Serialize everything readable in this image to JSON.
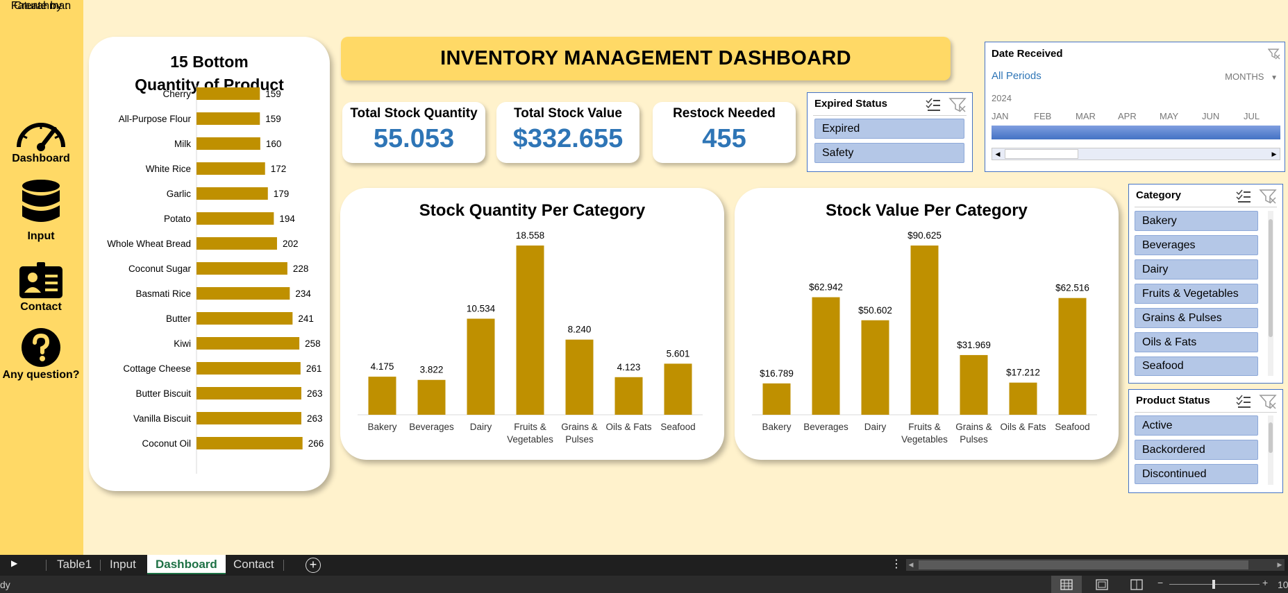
{
  "creator": {
    "label": "Create by :",
    "name": "Faturahman"
  },
  "nav": [
    {
      "label": "Dashboard",
      "icon": "speedometer-icon"
    },
    {
      "label": "Input",
      "icon": "database-icon"
    },
    {
      "label": "Contact",
      "icon": "id-card-icon"
    },
    {
      "label": "Any question?",
      "icon": "question-icon"
    }
  ],
  "dashboard_title": "INVENTORY MANAGEMENT DASHBOARD",
  "kpis": [
    {
      "title": "Total Stock Quantity",
      "value": "55.053"
    },
    {
      "title": "Total Stock Value",
      "value": "$332.655"
    },
    {
      "title": "Restock Needed",
      "value": "455"
    }
  ],
  "slicers": {
    "expired": {
      "title": "Expired Status",
      "items": [
        "Expired",
        "Safety"
      ]
    },
    "category": {
      "title": "Category",
      "items": [
        "Bakery",
        "Beverages",
        "Dairy",
        "Fruits & Vegetables",
        "Grains & Pulses",
        "Oils & Fats",
        "Seafood"
      ]
    },
    "product_status": {
      "title": "Product Status",
      "items": [
        "Active",
        "Backordered",
        "Discontinued"
      ]
    }
  },
  "timeline": {
    "title": "Date Received",
    "periods": "All Periods",
    "level": "MONTHS",
    "year": "2024",
    "months": [
      "JAN",
      "FEB",
      "MAR",
      "APR",
      "MAY",
      "JUN",
      "JUL"
    ]
  },
  "sheet_tabs": [
    "Table1",
    "Input",
    "Dashboard",
    "Contact"
  ],
  "active_tab": "Dashboard",
  "status": {
    "left": "dy",
    "zoom": "10"
  },
  "colors": {
    "bar": "#bf9000",
    "accent": "#2e75b6",
    "banner": "#ffd966",
    "slicer_button": "#b4c7e7"
  },
  "chart_data": [
    {
      "type": "bar",
      "orientation": "horizontal",
      "title": "15 Bottom Quantity of Product",
      "title_lines": [
        "15 Bottom",
        "Quantity of Product"
      ],
      "categories": [
        "Cherry",
        "All-Purpose Flour",
        "Milk",
        "White Rice",
        "Garlic",
        "Potato",
        "Whole Wheat Bread",
        "Coconut Sugar",
        "Basmati Rice",
        "Butter",
        "Kiwi",
        "Cottage Cheese",
        "Butter Biscuit",
        "Vanilla Biscuit",
        "Coconut Oil"
      ],
      "values": [
        159,
        159,
        160,
        172,
        179,
        194,
        202,
        228,
        234,
        241,
        258,
        261,
        263,
        263,
        266
      ],
      "labels": [
        "159",
        "159",
        "160",
        "172",
        "179",
        "194",
        "202",
        "228",
        "234",
        "241",
        "258",
        "261",
        "263",
        "263",
        "266"
      ]
    },
    {
      "type": "bar",
      "title": "Stock Quantity Per Category",
      "categories": [
        "Bakery",
        "Beverages",
        "Dairy",
        "Fruits & Vegetables",
        "Grains & Pulses",
        "Oils & Fats",
        "Seafood"
      ],
      "category_lines": [
        [
          "Bakery"
        ],
        [
          "Beverages"
        ],
        [
          "Dairy"
        ],
        [
          "Fruits &",
          "Vegetables"
        ],
        [
          "Grains &",
          "Pulses"
        ],
        [
          "Oils & Fats"
        ],
        [
          "Seafood"
        ]
      ],
      "values": [
        4175,
        3822,
        10534,
        18558,
        8240,
        4123,
        5601
      ],
      "labels": [
        "4.175",
        "3.822",
        "10.534",
        "18.558",
        "8.240",
        "4.123",
        "5.601"
      ]
    },
    {
      "type": "bar",
      "title": "Stock Value Per Category",
      "categories": [
        "Bakery",
        "Beverages",
        "Dairy",
        "Fruits & Vegetables",
        "Grains & Pulses",
        "Oils & Fats",
        "Seafood"
      ],
      "category_lines": [
        [
          "Bakery"
        ],
        [
          "Beverages"
        ],
        [
          "Dairy"
        ],
        [
          "Fruits &",
          "Vegetables"
        ],
        [
          "Grains &",
          "Pulses"
        ],
        [
          "Oils & Fats"
        ],
        [
          "Seafood"
        ]
      ],
      "values": [
        16789,
        62942,
        50602,
        90625,
        31969,
        17212,
        62516
      ],
      "labels": [
        "$16.789",
        "$62.942",
        "$50.602",
        "$90.625",
        "$31.969",
        "$17.212",
        "$62.516"
      ]
    }
  ]
}
